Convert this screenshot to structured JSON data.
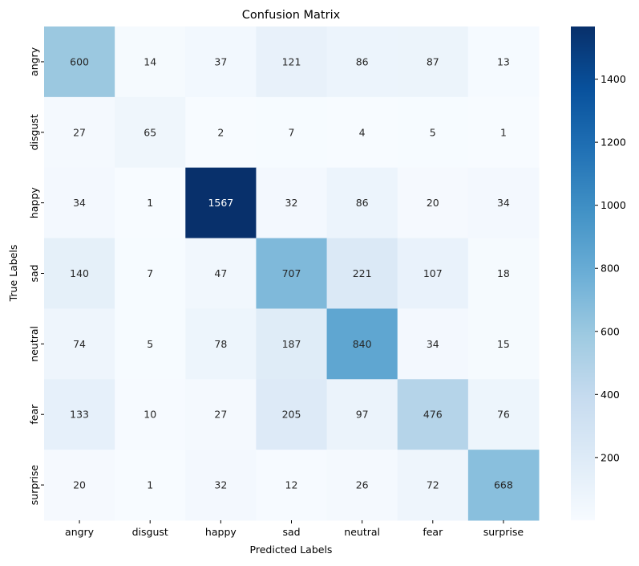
{
  "chart_data": {
    "type": "heatmap",
    "title": "Confusion Matrix",
    "xlabel": "Predicted Labels",
    "ylabel": "True Labels",
    "x_categories": [
      "angry",
      "disgust",
      "happy",
      "sad",
      "neutral",
      "fear",
      "surprise"
    ],
    "y_categories": [
      "angry",
      "disgust",
      "happy",
      "sad",
      "neutral",
      "fear",
      "surprise"
    ],
    "values": [
      [
        600,
        14,
        37,
        121,
        86,
        87,
        13
      ],
      [
        27,
        65,
        2,
        7,
        4,
        5,
        1
      ],
      [
        34,
        1,
        1567,
        32,
        86,
        20,
        34
      ],
      [
        140,
        7,
        47,
        707,
        221,
        107,
        18
      ],
      [
        74,
        5,
        78,
        187,
        840,
        34,
        15
      ],
      [
        133,
        10,
        27,
        205,
        97,
        476,
        76
      ],
      [
        20,
        1,
        32,
        12,
        26,
        72,
        668
      ]
    ],
    "colormap": "Blues",
    "colorbar": {
      "range": [
        1,
        1567
      ],
      "ticks": [
        200,
        400,
        600,
        800,
        1000,
        1200,
        1400
      ]
    }
  }
}
